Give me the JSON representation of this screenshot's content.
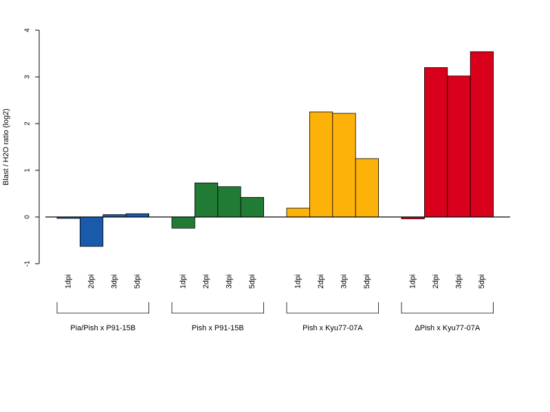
{
  "chart_data": {
    "type": "bar",
    "ylabel": "Blast / H2O ratio (log2)",
    "xlabel": "",
    "title": "",
    "ylim": [
      -1,
      4
    ],
    "yticks": [
      -1,
      0,
      1,
      2,
      3,
      4
    ],
    "grid": false,
    "legend": "none",
    "groups": [
      {
        "name": "Pia/Pish x P91-15B",
        "color": "#1a5aab",
        "categories": [
          "1dpi",
          "2dpi",
          "3dpi",
          "5dpi"
        ],
        "values": [
          -0.03,
          -0.63,
          0.05,
          0.07
        ]
      },
      {
        "name": "Pish x P91-15B",
        "color": "#217b35",
        "categories": [
          "1dpi",
          "2dpi",
          "3dpi",
          "5dpi"
        ],
        "values": [
          -0.24,
          0.73,
          0.65,
          0.42
        ]
      },
      {
        "name": "Pish x Kyu77-07A",
        "color": "#fdb20a",
        "categories": [
          "1dpi",
          "2dpi",
          "3dpi",
          "5dpi"
        ],
        "values": [
          0.19,
          2.25,
          2.22,
          1.25
        ]
      },
      {
        "name": "ΔPish x Kyu77-07A",
        "color": "#d8001a",
        "categories": [
          "1dpi",
          "2dpi",
          "3dpi",
          "5dpi"
        ],
        "values": [
          -0.04,
          3.2,
          3.02,
          3.54
        ]
      }
    ]
  }
}
